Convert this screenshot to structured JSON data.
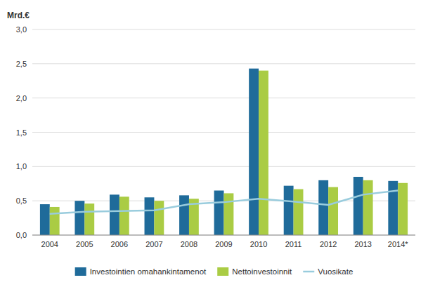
{
  "chart_data": {
    "type": "bar",
    "ylabel": "Mrd.€",
    "categories": [
      "2004",
      "2005",
      "2006",
      "2007",
      "2008",
      "2009",
      "2010",
      "2011",
      "2012",
      "2013",
      "2014*"
    ],
    "series": [
      {
        "name": "Investointien omahankintamenot",
        "color": "#1F6B9A",
        "values": [
          0.45,
          0.5,
          0.59,
          0.55,
          0.58,
          0.65,
          2.43,
          0.72,
          0.8,
          0.85,
          0.79
        ]
      },
      {
        "name": "Nettoinvestoinnit",
        "color": "#AACC44",
        "values": [
          0.41,
          0.46,
          0.56,
          0.5,
          0.53,
          0.61,
          2.4,
          0.67,
          0.7,
          0.8,
          0.76
        ]
      },
      {
        "name": "Vuosikate",
        "type": "line",
        "color": "#99CCDD",
        "values": [
          0.31,
          0.34,
          0.35,
          0.36,
          0.45,
          0.48,
          0.53,
          0.49,
          0.44,
          0.59,
          0.65
        ]
      }
    ],
    "ylim": [
      0,
      3.0
    ],
    "yticks": [
      {
        "value": 0.0,
        "label": "0,0"
      },
      {
        "value": 0.5,
        "label": "0,5"
      },
      {
        "value": 1.0,
        "label": "1,0"
      },
      {
        "value": 1.5,
        "label": "1,5"
      },
      {
        "value": 2.0,
        "label": "2,0"
      },
      {
        "value": 2.5,
        "label": "2,5"
      },
      {
        "value": 3.0,
        "label": "3,0"
      }
    ],
    "grid": true,
    "legend": "bottom"
  }
}
